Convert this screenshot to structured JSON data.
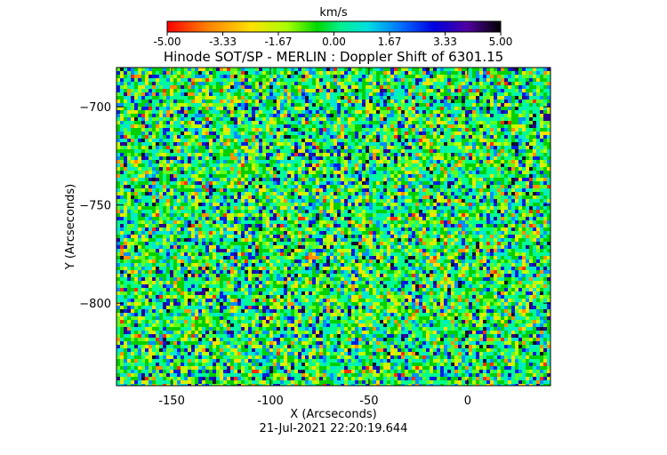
{
  "colorbar": {
    "unit_label": "km/s",
    "ticks": [
      "-5.00",
      "-3.33",
      "-1.67",
      "0.00",
      "1.67",
      "3.33",
      "5.00"
    ],
    "range": [
      -5.0,
      5.0
    ],
    "colors": [
      "#ff0000",
      "#ff8000",
      "#ffe000",
      "#b0ff00",
      "#00e000",
      "#00ff80",
      "#00e0e0",
      "#0080ff",
      "#0000e0",
      "#6000c0",
      "#400060",
      "#000000"
    ]
  },
  "chart_data": {
    "type": "heatmap",
    "title": "Hinode SOT/SP - MERLIN : Doppler Shift of 6301.15",
    "xlabel": "X (Arcseconds)",
    "ylabel": "Y (Arcseconds)",
    "xlim": [
      -178,
      42
    ],
    "ylim": [
      -842,
      -680
    ],
    "x_ticks": [
      -150,
      -100,
      -50,
      0
    ],
    "y_ticks": [
      -700,
      -750,
      -800
    ],
    "value_unit": "km/s",
    "value_range": [
      -5.0,
      5.0
    ],
    "description_values": "Doppler velocity map dominated by near-zero values with scattered positive and negative fluctuations"
  },
  "footer": {
    "timestamp": "21-Jul-2021 22:20:19.644"
  }
}
